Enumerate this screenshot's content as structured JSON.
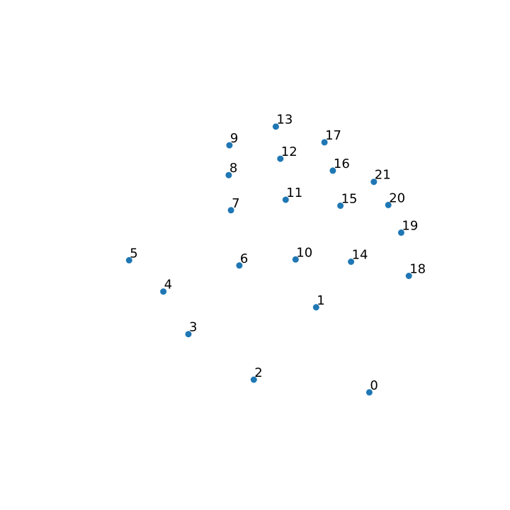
{
  "chart_data": {
    "type": "scatter",
    "title": "",
    "xlabel": "",
    "ylabel": "",
    "axes_visible": false,
    "grid": false,
    "point_color": "#1f77b4",
    "xlim": [
      -0.23,
      0.29
    ],
    "ylim": [
      -0.04,
      0.48
    ],
    "points": [
      {
        "label": "0",
        "x": 0.172,
        "y": 0.036
      },
      {
        "label": "1",
        "x": 0.102,
        "y": 0.15
      },
      {
        "label": "2",
        "x": 0.02,
        "y": 0.053
      },
      {
        "label": "3",
        "x": -0.066,
        "y": 0.114
      },
      {
        "label": "4",
        "x": -0.099,
        "y": 0.171
      },
      {
        "label": "5",
        "x": -0.144,
        "y": 0.213
      },
      {
        "label": "6",
        "x": 0.001,
        "y": 0.206
      },
      {
        "label": "7",
        "x": -0.01,
        "y": 0.28
      },
      {
        "label": "8",
        "x": -0.013,
        "y": 0.327
      },
      {
        "label": "9",
        "x": -0.012,
        "y": 0.367
      },
      {
        "label": "10",
        "x": 0.075,
        "y": 0.214
      },
      {
        "label": "11",
        "x": 0.062,
        "y": 0.294
      },
      {
        "label": "12",
        "x": 0.055,
        "y": 0.349
      },
      {
        "label": "13",
        "x": 0.049,
        "y": 0.392
      },
      {
        "label": "14",
        "x": 0.148,
        "y": 0.211
      },
      {
        "label": "15",
        "x": 0.134,
        "y": 0.286
      },
      {
        "label": "16",
        "x": 0.124,
        "y": 0.333
      },
      {
        "label": "17",
        "x": 0.113,
        "y": 0.371
      },
      {
        "label": "18",
        "x": 0.224,
        "y": 0.192
      },
      {
        "label": "19",
        "x": 0.214,
        "y": 0.25
      },
      {
        "label": "20",
        "x": 0.197,
        "y": 0.287
      },
      {
        "label": "21",
        "x": 0.178,
        "y": 0.318
      }
    ]
  }
}
